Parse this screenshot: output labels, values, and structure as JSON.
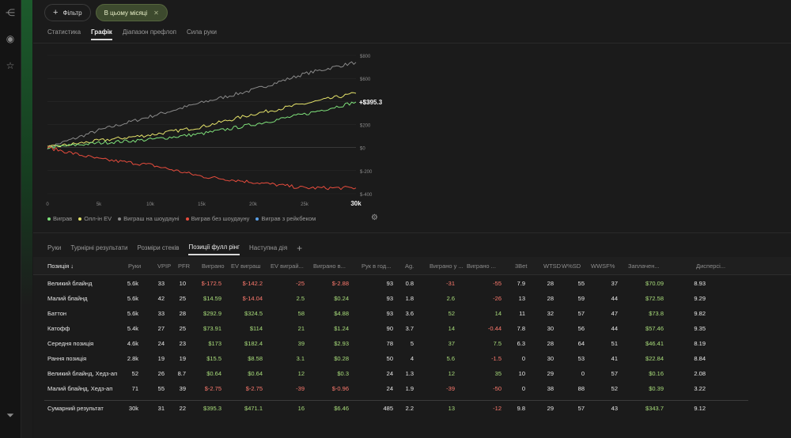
{
  "filter_bar": {
    "filter_label": "Фільтр",
    "period_chip": "В цьому місяці"
  },
  "tabs_top": [
    "Статистика",
    "Графік",
    "Діапазон префлоп",
    "Сила руки"
  ],
  "chart_data": {
    "type": "line",
    "x_ticks": [
      "0",
      "5k",
      "10k",
      "15k",
      "20k",
      "25k",
      "30k"
    ],
    "y_ticks": [
      "$800",
      "$600",
      "$400",
      "$200",
      "$0",
      "$-200",
      "$-400"
    ],
    "xlim": [
      0,
      30000
    ],
    "ylim": [
      -400,
      800
    ],
    "end_label": "+$395.3",
    "series": [
      {
        "name": "Виграш на шоудауні",
        "color": "#8a8a8a",
        "x": [
          0,
          5000,
          10000,
          15000,
          20000,
          25000,
          30000
        ],
        "values": [
          0,
          150,
          270,
          390,
          500,
          640,
          740
        ]
      },
      {
        "name": "Олл-ін EV",
        "color": "#e5e36a",
        "x": [
          0,
          5000,
          10000,
          15000,
          20000,
          25000,
          30000
        ],
        "values": [
          0,
          60,
          110,
          180,
          290,
          380,
          471
        ]
      },
      {
        "name": "Виграв",
        "color": "#7ee07a",
        "x": [
          0,
          5000,
          10000,
          15000,
          20000,
          25000,
          30000
        ],
        "values": [
          0,
          40,
          70,
          120,
          200,
          290,
          395
        ]
      },
      {
        "name": "Виграв без шоудауну",
        "color": "#e84c3d",
        "x": [
          0,
          5000,
          10000,
          15000,
          20000,
          25000,
          30000
        ],
        "values": [
          0,
          -100,
          -150,
          -250,
          -300,
          -350,
          -350
        ]
      }
    ]
  },
  "legend": [
    {
      "label": "Виграв",
      "color": "#7ee07a"
    },
    {
      "label": "Олл-ін EV",
      "color": "#e5e36a"
    },
    {
      "label": "Виграш на шоудауні",
      "color": "#8a8a8a"
    },
    {
      "label": "Виграв без шоудауну",
      "color": "#e84c3d"
    },
    {
      "label": "Виграв з рейкбеком",
      "color": "#5aa0e8"
    }
  ],
  "tabs_bottom": [
    "Руки",
    "Турнірні результати",
    "Розміри стеків",
    "Позиції фулл рінг",
    "Наступна дія"
  ],
  "columns": [
    "Позиція ↓",
    "Руки",
    "VPIP",
    "PFR",
    "Виграно",
    "EV виграш",
    "EV виграй...",
    "Виграно в...",
    "Рук в год...",
    "Ag.",
    "Виграно у ...",
    "Виграно ...",
    "3Bet",
    "WTSD",
    "W%SD",
    "WWSF%",
    "Заплачен...",
    "Дисперсі..."
  ],
  "rows": [
    [
      "Великий блайнд",
      "5.6k",
      "33",
      "10",
      "$-172.5",
      "$-142.2",
      "-25",
      "$-2.88",
      "93",
      "0.8",
      "-31",
      "-55",
      "7.9",
      "28",
      "55",
      "37",
      "$70.09",
      "8.93"
    ],
    [
      "Малий блайнд",
      "5.6k",
      "42",
      "25",
      "$14.59",
      "$-14.04",
      "2.5",
      "$0.24",
      "93",
      "1.8",
      "2.6",
      "-26",
      "13",
      "28",
      "59",
      "44",
      "$72.58",
      "9.29"
    ],
    [
      "Баттон",
      "5.6k",
      "33",
      "28",
      "$292.9",
      "$324.5",
      "58",
      "$4.88",
      "93",
      "3.6",
      "52",
      "14",
      "11",
      "32",
      "57",
      "47",
      "$73.8",
      "9.82"
    ],
    [
      "Катофф",
      "5.4k",
      "27",
      "25",
      "$73.91",
      "$114",
      "21",
      "$1.24",
      "90",
      "3.7",
      "14",
      "-0.44",
      "7.8",
      "30",
      "56",
      "44",
      "$57.46",
      "9.35"
    ],
    [
      "Середня позиція",
      "4.6k",
      "24",
      "23",
      "$173",
      "$182.4",
      "39",
      "$2.93",
      "78",
      "5",
      "37",
      "7.5",
      "6.3",
      "28",
      "64",
      "51",
      "$46.41",
      "8.19"
    ],
    [
      "Рання позиція",
      "2.8k",
      "19",
      "19",
      "$15.5",
      "$8.58",
      "3.1",
      "$0.28",
      "50",
      "4",
      "5.6",
      "-1.5",
      "0",
      "30",
      "53",
      "41",
      "$22.84",
      "8.84"
    ],
    [
      "Великий блайнд, Хедз-ап",
      "52",
      "26",
      "8.7",
      "$0.64",
      "$0.64",
      "12",
      "$0.3",
      "24",
      "1.3",
      "12",
      "35",
      "10",
      "29",
      "0",
      "57",
      "$0.16",
      "2.08"
    ],
    [
      "Малий блайнд, Хедз-ап",
      "71",
      "55",
      "39",
      "$-2.75",
      "$-2.75",
      "-39",
      "$-0.96",
      "24",
      "1.9",
      "-39",
      "-50",
      "0",
      "38",
      "88",
      "52",
      "$0.39",
      "3.22"
    ]
  ],
  "total": [
    "Сумарний результат",
    "30k",
    "31",
    "22",
    "$395.3",
    "$471.1",
    "16",
    "$6.46",
    "485",
    "2.2",
    "13",
    "-12",
    "9.8",
    "29",
    "57",
    "43",
    "$343.7",
    "9.12"
  ]
}
